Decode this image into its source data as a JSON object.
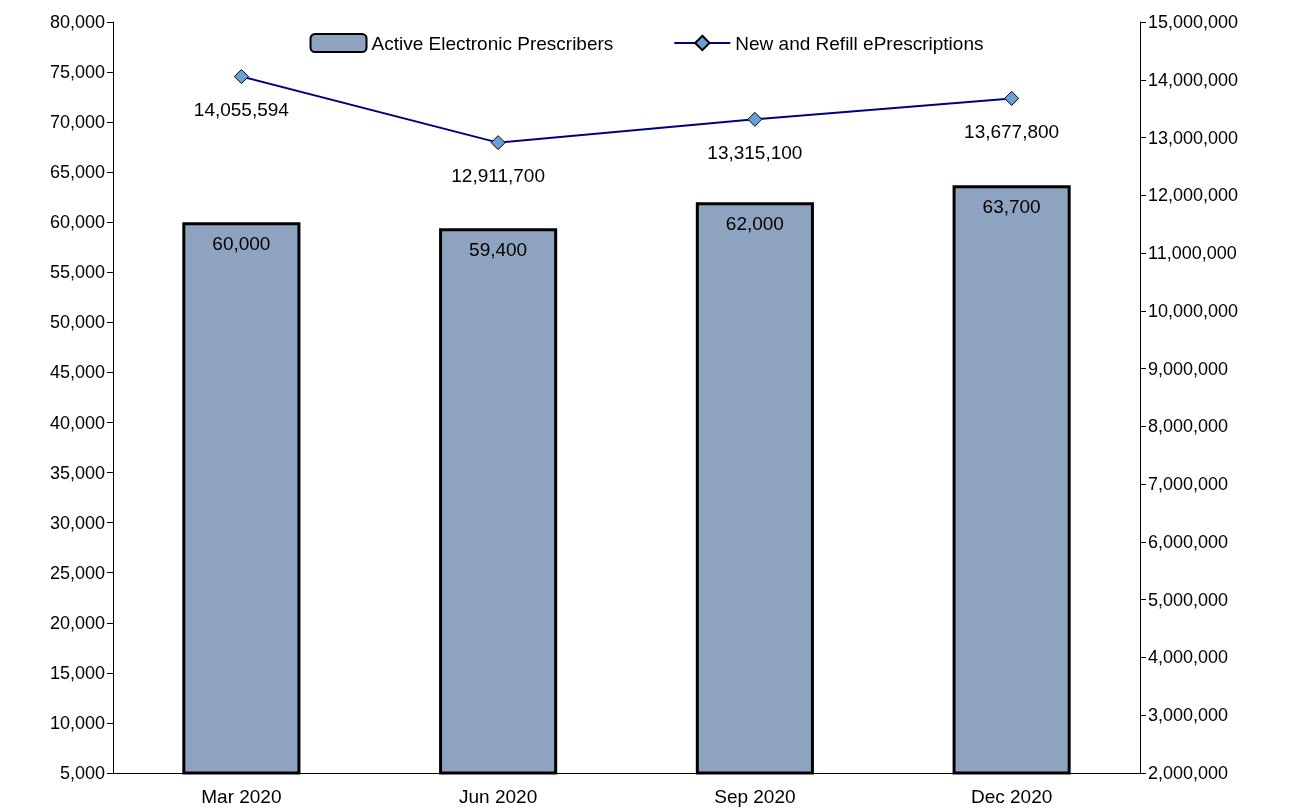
{
  "chart_data": {
    "type": "bar",
    "categories": [
      "Mar 2020",
      "Jun 2020",
      "Sep 2020",
      "Dec 2020"
    ],
    "series": [
      {
        "name": "Active Electronic Prescribers",
        "color": "#8ea3bf",
        "values": [
          60000,
          59400,
          62000,
          63700
        ],
        "value_labels": [
          "60,000",
          "59,400",
          "62,000",
          "63,700"
        ]
      },
      {
        "name": "New and Refill ePrescriptions",
        "type": "line",
        "axis": "y2",
        "color": "#000080",
        "colors": [
          "#6a9fd4",
          "#6a9fd4",
          "#6a9fd4",
          "#6a9fd4"
        ],
        "values": [
          14055594,
          12911700,
          13315100,
          13677800
        ],
        "value_labels": [
          "14,055,594",
          "12,911,700",
          "13,315,100",
          "13,677,800"
        ]
      }
    ],
    "ylim": [
      5000,
      80000
    ],
    "yticks": [
      {
        "value": 5000,
        "label": "5,000"
      },
      {
        "value": 10000,
        "label": "10,000"
      },
      {
        "value": 15000,
        "label": "15,000"
      },
      {
        "value": 20000,
        "label": "20,000"
      },
      {
        "value": 25000,
        "label": "25,000"
      },
      {
        "value": 30000,
        "label": "30,000"
      },
      {
        "value": 35000,
        "label": "35,000"
      },
      {
        "value": 40000,
        "label": "40,000"
      },
      {
        "value": 45000,
        "label": "45,000"
      },
      {
        "value": 50000,
        "label": "50,000"
      },
      {
        "value": 55000,
        "label": "55,000"
      },
      {
        "value": 60000,
        "label": "60,000"
      },
      {
        "value": 65000,
        "label": "65,000"
      },
      {
        "value": 70000,
        "label": "70,000"
      },
      {
        "value": 75000,
        "label": "75,000"
      },
      {
        "value": 80000,
        "label": "80,000"
      }
    ],
    "y2lim": [
      2000000,
      15000000
    ],
    "y2ticks": [
      {
        "value": 2000000,
        "label": "2,000,000"
      },
      {
        "value": 3000000,
        "label": "3,000,000"
      },
      {
        "value": 4000000,
        "label": "4,000,000"
      },
      {
        "value": 5000000,
        "label": "5,000,000"
      },
      {
        "value": 6000000,
        "label": "6,000,000"
      },
      {
        "value": 7000000,
        "label": "7,000,000"
      },
      {
        "value": 8000000,
        "label": "8,000,000"
      },
      {
        "value": 9000000,
        "label": "9,000,000"
      },
      {
        "value": 10000000,
        "label": "10,000,000"
      },
      {
        "value": 11000000,
        "label": "11,000,000"
      },
      {
        "value": 12000000,
        "label": "12,000,000"
      },
      {
        "value": 13000000,
        "label": "13,000,000"
      },
      {
        "value": 14000000,
        "label": "14,000,000"
      },
      {
        "value": 15000000,
        "label": "15,000,000"
      }
    ],
    "grid": false,
    "legend": "top",
    "marker": "diamond",
    "line_style": "solid"
  }
}
